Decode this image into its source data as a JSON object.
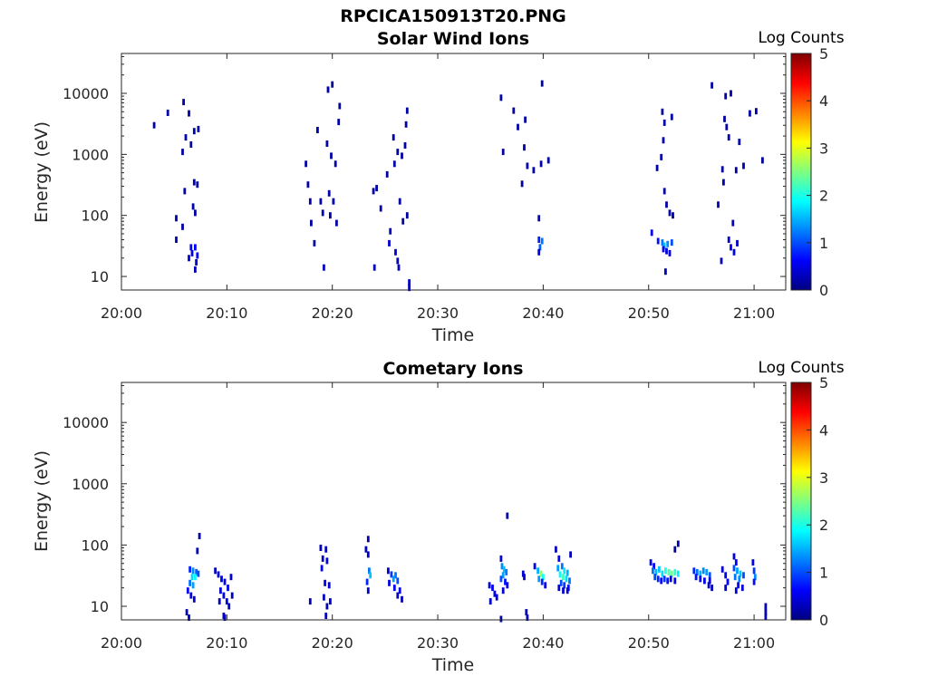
{
  "figure_title": "RPCICA150913T20.PNG",
  "chart_data": [
    {
      "type": "heatmap",
      "title": "Solar Wind Ions",
      "xlabel": "Time",
      "ylabel": "Energy (eV)",
      "x_ticks": [
        "20:00",
        "20:10",
        "20:20",
        "20:30",
        "20:40",
        "20:50",
        "21:00"
      ],
      "y_ticks": [
        "10",
        "100",
        "1000",
        "10000"
      ],
      "y_scale": "log",
      "ylim": [
        6,
        45000
      ],
      "xlim_minutes": [
        0,
        63
      ],
      "colorbar": {
        "label": "Log Counts",
        "range": [
          0,
          5
        ],
        "ticks": [
          "0",
          "1",
          "2",
          "3",
          "4",
          "5"
        ],
        "colormap": "jet"
      },
      "cells": [
        [
          3.1,
          3000,
          0.2
        ],
        [
          4.4,
          4800,
          0.2
        ],
        [
          5.9,
          7200,
          0.2
        ],
        [
          6.4,
          4700,
          0.2
        ],
        [
          6.1,
          1900,
          0.2
        ],
        [
          6.9,
          2400,
          0.2
        ],
        [
          7.3,
          2600,
          0.2
        ],
        [
          6.6,
          1450,
          0.2
        ],
        [
          5.8,
          1100,
          0.2
        ],
        [
          6.0,
          250,
          0.2
        ],
        [
          6.9,
          350,
          0.2
        ],
        [
          7.2,
          320,
          0.2
        ],
        [
          7.0,
          110,
          0.2
        ],
        [
          6.8,
          140,
          0.2
        ],
        [
          5.2,
          90,
          0.2
        ],
        [
          5.8,
          65,
          0.2
        ],
        [
          5.2,
          40,
          0.2
        ],
        [
          6.6,
          30,
          0.6
        ],
        [
          7.0,
          30,
          0.6
        ],
        [
          6.7,
          24,
          0.5
        ],
        [
          7.2,
          22,
          0.6
        ],
        [
          6.4,
          20,
          0.4
        ],
        [
          7.1,
          17,
          0.4
        ],
        [
          7.0,
          13,
          0.3
        ],
        [
          17.5,
          700,
          0.2
        ],
        [
          17.7,
          320,
          0.2
        ],
        [
          17.9,
          170,
          0.2
        ],
        [
          18.0,
          75,
          0.2
        ],
        [
          18.3,
          35,
          0.2
        ],
        [
          18.6,
          2500,
          0.2
        ],
        [
          18.9,
          170,
          0.2
        ],
        [
          19.1,
          110,
          0.2
        ],
        [
          19.6,
          11500,
          0.2
        ],
        [
          20.0,
          14000,
          0.2
        ],
        [
          19.5,
          1500,
          0.2
        ],
        [
          19.9,
          950,
          0.2
        ],
        [
          20.3,
          700,
          0.2
        ],
        [
          19.7,
          230,
          0.2
        ],
        [
          20.1,
          170,
          0.2
        ],
        [
          20.4,
          75,
          0.2
        ],
        [
          19.8,
          100,
          0.2
        ],
        [
          20.7,
          6200,
          0.2
        ],
        [
          20.6,
          3400,
          0.2
        ],
        [
          19.2,
          14,
          0.3
        ],
        [
          23.9,
          250,
          0.2
        ],
        [
          24.2,
          280,
          0.2
        ],
        [
          24.6,
          130,
          0.2
        ],
        [
          24.0,
          14,
          0.3
        ],
        [
          25.2,
          470,
          0.2
        ],
        [
          25.8,
          1900,
          0.2
        ],
        [
          26.2,
          1100,
          0.2
        ],
        [
          26.6,
          950,
          0.2
        ],
        [
          26.9,
          1400,
          0.2
        ],
        [
          27.0,
          3100,
          0.2
        ],
        [
          27.1,
          5200,
          0.2
        ],
        [
          25.9,
          700,
          0.2
        ],
        [
          26.4,
          170,
          0.2
        ],
        [
          26.7,
          80,
          0.2
        ],
        [
          27.1,
          100,
          0.2
        ],
        [
          25.5,
          55,
          0.3
        ],
        [
          25.4,
          35,
          0.4
        ],
        [
          26.0,
          25,
          0.4
        ],
        [
          26.2,
          18,
          0.3
        ],
        [
          26.3,
          14,
          0.3
        ],
        [
          27.3,
          8,
          0.3
        ],
        [
          27.3,
          6.5,
          0.3
        ],
        [
          36.0,
          8500,
          0.2
        ],
        [
          36.2,
          1100,
          0.2
        ],
        [
          37.2,
          5200,
          0.2
        ],
        [
          37.6,
          2800,
          0.2
        ],
        [
          38.3,
          3700,
          0.2
        ],
        [
          38.2,
          1300,
          0.2
        ],
        [
          38.5,
          650,
          0.2
        ],
        [
          39.1,
          550,
          0.2
        ],
        [
          38.0,
          330,
          0.2
        ],
        [
          39.9,
          14500,
          0.2
        ],
        [
          40.5,
          800,
          0.2
        ],
        [
          39.8,
          700,
          0.2
        ],
        [
          39.6,
          90,
          0.3
        ],
        [
          39.6,
          40,
          0.8
        ],
        [
          39.7,
          30,
          1.1
        ],
        [
          39.6,
          25,
          0.5
        ],
        [
          39.9,
          38,
          1.2
        ],
        [
          50.3,
          52,
          0.5
        ],
        [
          50.9,
          38,
          0.7
        ],
        [
          51.3,
          36,
          1.2
        ],
        [
          51.5,
          32,
          1.6
        ],
        [
          51.8,
          34,
          1.3
        ],
        [
          52.2,
          36,
          1.0
        ],
        [
          51.4,
          28,
          0.6
        ],
        [
          51.7,
          26,
          0.5
        ],
        [
          52.0,
          24,
          0.4
        ],
        [
          51.6,
          12,
          0.3
        ],
        [
          51.3,
          5000,
          0.2
        ],
        [
          52.2,
          4100,
          0.2
        ],
        [
          51.5,
          3300,
          0.2
        ],
        [
          51.4,
          1700,
          0.2
        ],
        [
          50.8,
          600,
          0.2
        ],
        [
          51.2,
          900,
          0.2
        ],
        [
          51.5,
          250,
          0.2
        ],
        [
          51.7,
          150,
          0.2
        ],
        [
          52.0,
          110,
          0.2
        ],
        [
          52.3,
          100,
          0.2
        ],
        [
          56.0,
          13500,
          0.2
        ],
        [
          56.6,
          150,
          0.2
        ],
        [
          57.3,
          9000,
          0.2
        ],
        [
          57.2,
          3800,
          0.2
        ],
        [
          57.4,
          2800,
          0.2
        ],
        [
          57.0,
          570,
          0.2
        ],
        [
          57.1,
          350,
          0.2
        ],
        [
          57.6,
          1900,
          0.2
        ],
        [
          57.8,
          10000,
          0.2
        ],
        [
          58.3,
          550,
          0.2
        ],
        [
          58.6,
          1600,
          0.2
        ],
        [
          59.0,
          650,
          0.2
        ],
        [
          59.6,
          4700,
          0.2
        ],
        [
          60.2,
          5100,
          0.2
        ],
        [
          60.8,
          800,
          0.2
        ],
        [
          58.0,
          75,
          0.3
        ],
        [
          57.6,
          40,
          0.4
        ],
        [
          57.8,
          30,
          0.6
        ],
        [
          58.1,
          25,
          0.5
        ],
        [
          56.9,
          18,
          0.3
        ],
        [
          58.4,
          35,
          0.3
        ]
      ]
    },
    {
      "type": "heatmap",
      "title": "Cometary Ions",
      "xlabel": "Time",
      "ylabel": "Energy (eV)",
      "x_ticks": [
        "20:00",
        "20:10",
        "20:20",
        "20:30",
        "20:40",
        "20:50",
        "21:00"
      ],
      "y_ticks": [
        "10",
        "100",
        "1000",
        "10000"
      ],
      "y_scale": "log",
      "ylim": [
        6,
        45000
      ],
      "xlim_minutes": [
        0,
        63
      ],
      "colorbar": {
        "label": "Log Counts",
        "range": [
          0,
          5
        ],
        "ticks": [
          "0",
          "1",
          "2",
          "3",
          "4",
          "5"
        ],
        "colormap": "jet"
      },
      "cells": [
        [
          7.4,
          140,
          0.2
        ],
        [
          7.2,
          80,
          0.2
        ],
        [
          6.5,
          40,
          0.8
        ],
        [
          6.8,
          38,
          1.3
        ],
        [
          7.1,
          36,
          1.1
        ],
        [
          6.7,
          30,
          1.7
        ],
        [
          7.0,
          30,
          1.9
        ],
        [
          7.3,
          34,
          1.0
        ],
        [
          6.5,
          24,
          1.2
        ],
        [
          6.8,
          22,
          1.4
        ],
        [
          6.3,
          18,
          0.6
        ],
        [
          6.6,
          15,
          0.5
        ],
        [
          6.9,
          13,
          0.4
        ],
        [
          6.2,
          8,
          0.3
        ],
        [
          6.4,
          6.5,
          0.3
        ],
        [
          8.9,
          38,
          0.3
        ],
        [
          9.2,
          33,
          0.4
        ],
        [
          9.5,
          28,
          0.5
        ],
        [
          9.8,
          25,
          0.6
        ],
        [
          10.1,
          20,
          0.5
        ],
        [
          10.4,
          30,
          0.3
        ],
        [
          9.4,
          18,
          0.4
        ],
        [
          9.7,
          15,
          0.5
        ],
        [
          10.0,
          12,
          0.5
        ],
        [
          9.3,
          12,
          0.3
        ],
        [
          10.2,
          10,
          0.3
        ],
        [
          10.5,
          15,
          0.3
        ],
        [
          9.7,
          7,
          0.3
        ],
        [
          9.8,
          6.5,
          0.3
        ],
        [
          18.9,
          90,
          0.3
        ],
        [
          19.4,
          85,
          0.3
        ],
        [
          19.1,
          60,
          0.3
        ],
        [
          19.5,
          55,
          0.4
        ],
        [
          19.0,
          42,
          0.5
        ],
        [
          19.3,
          24,
          0.5
        ],
        [
          19.7,
          22,
          0.4
        ],
        [
          19.2,
          14,
          0.3
        ],
        [
          19.5,
          10,
          0.3
        ],
        [
          19.4,
          7,
          0.3
        ],
        [
          17.9,
          12,
          0.3
        ],
        [
          19.8,
          12,
          0.4
        ],
        [
          23.4,
          125,
          0.2
        ],
        [
          23.2,
          85,
          0.3
        ],
        [
          23.4,
          70,
          0.3
        ],
        [
          23.5,
          38,
          1.2
        ],
        [
          23.6,
          32,
          1.6
        ],
        [
          23.3,
          25,
          0.8
        ],
        [
          23.4,
          18,
          0.4
        ],
        [
          25.3,
          38,
          0.4
        ],
        [
          25.6,
          33,
          0.9
        ],
        [
          26.0,
          32,
          1.2
        ],
        [
          25.8,
          28,
          1.4
        ],
        [
          26.2,
          26,
          1.0
        ],
        [
          25.4,
          24,
          0.5
        ],
        [
          25.9,
          20,
          0.6
        ],
        [
          26.4,
          18,
          0.5
        ],
        [
          26.2,
          15,
          0.3
        ],
        [
          26.6,
          13,
          0.3
        ],
        [
          34.9,
          22,
          0.5
        ],
        [
          35.2,
          20,
          0.6
        ],
        [
          35.4,
          16,
          0.5
        ],
        [
          35.6,
          14,
          0.4
        ],
        [
          35.0,
          12,
          0.4
        ],
        [
          36.0,
          60,
          0.4
        ],
        [
          36.1,
          45,
          1.3
        ],
        [
          36.3,
          40,
          1.6
        ],
        [
          36.5,
          36,
          1.2
        ],
        [
          36.2,
          32,
          1.4
        ],
        [
          36.0,
          28,
          1.0
        ],
        [
          36.4,
          25,
          0.7
        ],
        [
          36.6,
          22,
          0.5
        ],
        [
          36.2,
          18,
          0.4
        ],
        [
          36.6,
          300,
          0.2
        ],
        [
          36.0,
          6.2,
          0.2
        ],
        [
          38.1,
          34,
          0.4
        ],
        [
          38.2,
          30,
          0.4
        ],
        [
          38.4,
          8,
          0.3
        ],
        [
          38.5,
          6.5,
          0.3
        ],
        [
          39.2,
          45,
          0.5
        ],
        [
          39.5,
          38,
          1.5
        ],
        [
          39.8,
          34,
          2.6
        ],
        [
          40.0,
          30,
          2.0
        ],
        [
          39.6,
          28,
          1.4
        ],
        [
          39.9,
          25,
          0.8
        ],
        [
          40.2,
          22,
          0.5
        ],
        [
          41.2,
          85,
          0.3
        ],
        [
          41.5,
          60,
          0.6
        ],
        [
          41.8,
          45,
          1.2
        ],
        [
          41.4,
          42,
          1.4
        ],
        [
          42.0,
          38,
          1.8
        ],
        [
          42.3,
          35,
          1.5
        ],
        [
          41.6,
          33,
          1.9
        ],
        [
          41.9,
          30,
          2.2
        ],
        [
          42.2,
          28,
          1.7
        ],
        [
          42.5,
          26,
          1.2
        ],
        [
          41.7,
          24,
          1.0
        ],
        [
          42.0,
          22,
          0.9
        ],
        [
          42.4,
          20,
          0.7
        ],
        [
          41.5,
          20,
          0.5
        ],
        [
          41.9,
          18,
          0.4
        ],
        [
          42.3,
          18,
          0.5
        ],
        [
          42.6,
          70,
          0.3
        ],
        [
          50.2,
          52,
          0.5
        ],
        [
          50.5,
          45,
          0.6
        ],
        [
          50.4,
          38,
          1.2
        ],
        [
          50.7,
          36,
          1.5
        ],
        [
          51.0,
          40,
          1.6
        ],
        [
          51.3,
          34,
          1.7
        ],
        [
          51.6,
          38,
          2.0
        ],
        [
          51.9,
          36,
          2.3
        ],
        [
          52.2,
          34,
          2.4
        ],
        [
          52.5,
          36,
          2.1
        ],
        [
          52.8,
          34,
          1.8
        ],
        [
          50.6,
          30,
          1.0
        ],
        [
          50.9,
          28,
          0.8
        ],
        [
          51.2,
          26,
          0.6
        ],
        [
          51.5,
          28,
          0.9
        ],
        [
          51.8,
          26,
          0.7
        ],
        [
          52.1,
          28,
          0.6
        ],
        [
          52.5,
          26,
          0.5
        ],
        [
          52.8,
          105,
          0.2
        ],
        [
          52.5,
          85,
          0.2
        ],
        [
          54.3,
          38,
          0.8
        ],
        [
          54.6,
          36,
          1.2
        ],
        [
          54.9,
          34,
          1.5
        ],
        [
          55.2,
          38,
          1.3
        ],
        [
          55.5,
          36,
          1.4
        ],
        [
          55.8,
          32,
          1.0
        ],
        [
          54.5,
          30,
          0.7
        ],
        [
          54.9,
          28,
          0.6
        ],
        [
          55.3,
          26,
          0.5
        ],
        [
          55.7,
          22,
          0.4
        ],
        [
          56.0,
          20,
          0.3
        ],
        [
          55.8,
          26,
          0.4
        ],
        [
          57.0,
          40,
          0.4
        ],
        [
          57.3,
          32,
          0.5
        ],
        [
          57.5,
          25,
          0.6
        ],
        [
          57.3,
          20,
          0.4
        ],
        [
          58.1,
          65,
          0.4
        ],
        [
          58.3,
          52,
          0.6
        ],
        [
          58.1,
          42,
          1.0
        ],
        [
          58.4,
          38,
          1.4
        ],
        [
          58.7,
          34,
          1.6
        ],
        [
          58.2,
          30,
          1.2
        ],
        [
          58.6,
          28,
          1.3
        ],
        [
          59.0,
          32,
          1.0
        ],
        [
          58.5,
          22,
          0.6
        ],
        [
          58.9,
          20,
          0.5
        ],
        [
          58.3,
          18,
          0.4
        ],
        [
          59.9,
          52,
          0.5
        ],
        [
          60.0,
          38,
          0.9
        ],
        [
          60.1,
          30,
          1.3
        ],
        [
          60.0,
          25,
          0.7
        ],
        [
          61.1,
          10,
          0.3
        ],
        [
          61.1,
          8,
          0.3
        ],
        [
          61.1,
          6.8,
          0.3
        ]
      ]
    }
  ]
}
